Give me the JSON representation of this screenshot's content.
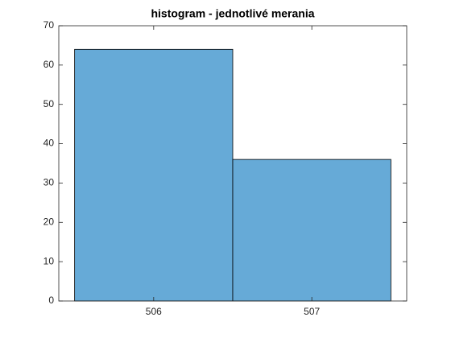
{
  "chart_data": {
    "type": "histogram",
    "title": "histogram - jednotlivé merania",
    "bins": [
      505.5,
      506.5,
      507.5
    ],
    "values": [
      64,
      36
    ],
    "color": "#66aad7",
    "edgecolor": "#000000",
    "xlim": [
      505.4,
      507.6
    ],
    "xticks": [
      506,
      507
    ],
    "ylim": [
      0,
      70
    ],
    "yticks": [
      0,
      10,
      20,
      30,
      40,
      50,
      60,
      70
    ],
    "grid": false
  }
}
